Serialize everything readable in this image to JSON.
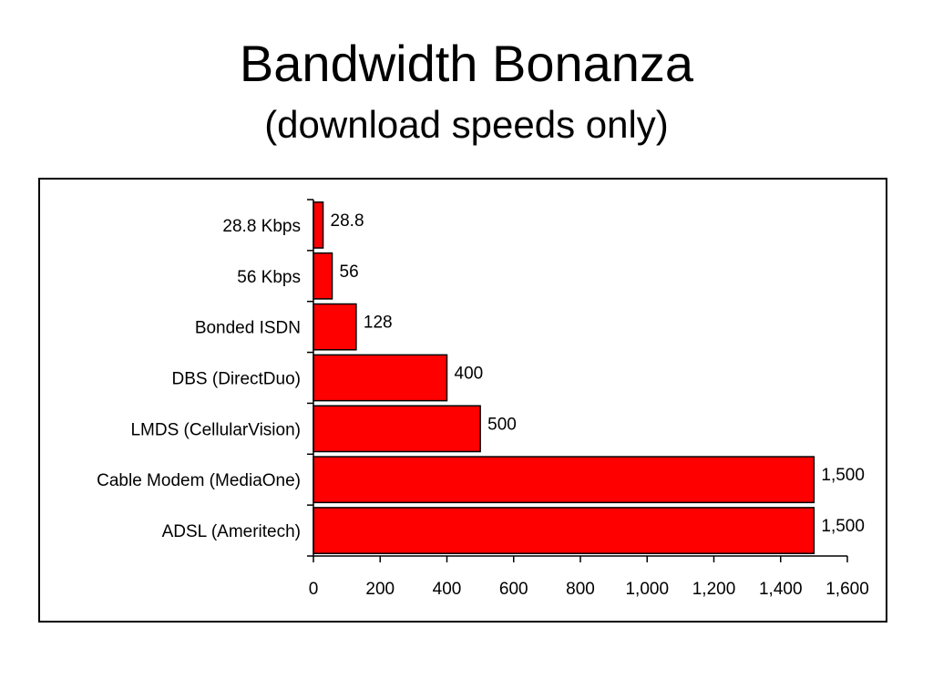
{
  "slide": {
    "title": "Bandwidth Bonanza",
    "subtitle": "(download speeds only)"
  },
  "chart_data": {
    "type": "bar",
    "orientation": "horizontal",
    "categories": [
      "28.8 Kbps",
      "56 Kbps",
      "Bonded ISDN",
      "DBS (DirectDuo)",
      "LMDS (CellularVision)",
      "Cable Modem (MediaOne)",
      "ADSL (Ameritech)"
    ],
    "values": [
      28.8,
      56,
      128,
      400,
      500,
      1500,
      1500
    ],
    "data_labels": [
      "28.8",
      "56",
      "128",
      "400",
      "500",
      "1,500",
      "1,500"
    ],
    "x_ticks": [
      0,
      200,
      400,
      600,
      800,
      1000,
      1200,
      1400,
      1600
    ],
    "x_tick_labels": [
      "0",
      "200",
      "400",
      "600",
      "800",
      "1,000",
      "1,200",
      "1,400",
      "1,600"
    ],
    "xlim": [
      0,
      1600
    ],
    "xlabel": "",
    "ylabel": "",
    "grid": false,
    "legend": "none",
    "bar_color": "#ff0000",
    "bar_edge_color": "#000000"
  }
}
